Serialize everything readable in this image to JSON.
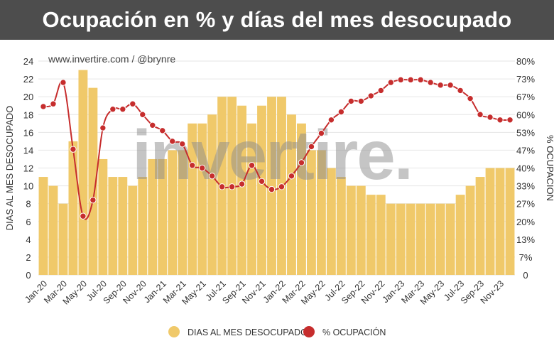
{
  "chart_data": {
    "type": "bar+line",
    "title": "Ocupación en % y días del mes desocupado",
    "source_label": "www.invertire.com / @brynre",
    "watermark": "invertire.",
    "ylabel_left": "DIAS AL MES DESOCUPADO",
    "ylabel_right": "% OCUPACIÓN",
    "ylim_left": [
      0,
      24
    ],
    "ylim_right": [
      0,
      80
    ],
    "yticks_left": [
      "0",
      "2",
      "4",
      "6",
      "8",
      "10",
      "12",
      "14",
      "16",
      "18",
      "20",
      "22",
      "24"
    ],
    "yticks_right": [
      "0",
      "7%",
      "13%",
      "20%",
      "27%",
      "33%",
      "40%",
      "47%",
      "53%",
      "60%",
      "67%",
      "73%",
      "80%"
    ],
    "categories": [
      "Jan-20",
      "Feb-20",
      "Mar-20",
      "Apr-20",
      "May-20",
      "Jun-20",
      "Jul-20",
      "Aug-20",
      "Sep-20",
      "Oct-20",
      "Nov-20",
      "Dec-20",
      "Jan-21",
      "Feb-21",
      "Mar-21",
      "Apr-21",
      "May-21",
      "Jun-21",
      "Jul-21",
      "Aug-21",
      "Sep-21",
      "Oct-21",
      "Nov-21",
      "Dec-21",
      "Jan-22",
      "Feb-22",
      "Mar-22",
      "Apr-22",
      "May-22",
      "Jun-22",
      "Jul-22",
      "Aug-22",
      "Sep-22",
      "Oct-22",
      "Nov-22",
      "Dec-22",
      "Jan-23",
      "Feb-23",
      "Mar-23",
      "Apr-23",
      "May-23",
      "Jun-23",
      "Jul-23",
      "Aug-23",
      "Sep-23",
      "Oct-23",
      "Nov-23",
      "Dec-23"
    ],
    "x_tick_labels": [
      "Jan-20",
      "Mar-20",
      "May-20",
      "Jul-20",
      "Sep-20",
      "Nov-20",
      "Jan-21",
      "Mar-21",
      "May-21",
      "Jul-21",
      "Sep-21",
      "Nov-21",
      "Jan-22",
      "Mar-22",
      "May-22",
      "Jul-22",
      "Sep-22",
      "Nov-22",
      "Jan-23",
      "Mar-23",
      "May-23",
      "Jul-23",
      "Sep-23",
      "Nov-23"
    ],
    "series": [
      {
        "name": "DIAS AL MES DESOCUPADO",
        "type": "bar",
        "axis": "left",
        "color": "#f0c96a",
        "values": [
          11,
          10,
          8,
          15,
          23,
          21,
          13,
          11,
          11,
          10,
          11,
          13,
          13,
          14,
          14,
          17,
          17,
          18,
          20,
          20,
          19,
          17,
          19,
          20,
          20,
          18,
          17,
          14,
          14,
          12,
          11,
          10,
          10,
          9,
          9,
          8,
          8,
          8,
          8,
          8,
          8,
          8,
          9,
          10,
          11,
          12,
          12,
          12
        ]
      },
      {
        "name": "% OCUPACIÓN",
        "type": "line",
        "axis": "right",
        "color": "#c62d2d",
        "values": [
          63,
          64,
          72,
          47,
          22,
          28,
          55,
          62,
          62,
          64,
          60,
          56,
          54,
          50,
          49,
          41,
          40,
          37,
          33,
          33,
          34,
          41,
          35,
          32,
          33,
          37,
          42,
          48,
          53,
          58,
          61,
          65,
          65,
          67,
          69,
          72,
          73,
          73,
          73,
          72,
          71,
          71,
          69,
          66,
          60,
          59,
          58,
          58
        ]
      }
    ]
  }
}
